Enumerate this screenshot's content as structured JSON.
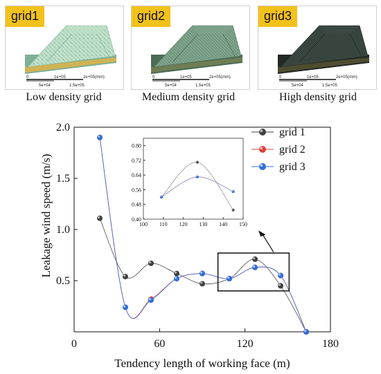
{
  "panels": [
    {
      "badge": "grid1",
      "caption": "Low density grid",
      "mesh_color": "#bfe0c8",
      "mesh_dark": "#7fb096",
      "scale": [
        "0",
        "1e+05",
        "2e+05(mm)",
        "5e+04",
        "1.5e+05"
      ]
    },
    {
      "badge": "grid2",
      "caption": "Medium density grid",
      "mesh_color": "#7fa48c",
      "mesh_dark": "#4b6b57",
      "scale": [
        "0",
        "1e+05",
        "2e+05(mm)",
        "5e+04",
        "1.5e+05"
      ]
    },
    {
      "badge": "grid3",
      "caption": "High density grid",
      "mesh_color": "#3c4a44",
      "mesh_dark": "#222a26",
      "scale": [
        "0",
        "1e+05",
        "2e+05(mm)",
        "5e+04",
        "1.5e+05"
      ]
    }
  ],
  "chart_data": {
    "type": "line",
    "xlabel": "Tendency length of working face (m)",
    "ylabel": "Leakage wind speed (m/s)",
    "xlim": [
      0,
      180
    ],
    "ylim": [
      0,
      2.0
    ],
    "xticks": [
      "0",
      "60",
      "120",
      "180"
    ],
    "yticks": [
      "0.5",
      "1.0",
      "1.5",
      "2.0"
    ],
    "ytick_values": [
      0.5,
      1.0,
      1.5,
      2.0
    ],
    "xtick_values": [
      0,
      60,
      120,
      180
    ],
    "x": [
      18,
      36,
      54,
      72,
      90,
      109,
      127,
      145,
      163
    ],
    "series": [
      {
        "name": "grid 1",
        "values": [
          1.11,
          0.54,
          0.67,
          0.57,
          0.47,
          0.52,
          0.71,
          0.45,
          0.0
        ],
        "color": "#404040"
      },
      {
        "name": "grid 2",
        "values": [
          1.9,
          0.24,
          0.32,
          0.52,
          0.57,
          0.52,
          0.63,
          0.55,
          0.0
        ],
        "color": "#e0413b"
      },
      {
        "name": "grid 3",
        "values": [
          1.9,
          0.24,
          0.31,
          0.52,
          0.57,
          0.52,
          0.63,
          0.55,
          0.0
        ],
        "color": "#2f6fdb"
      }
    ],
    "legend_placement": "top-right",
    "grid": false,
    "inset": {
      "xlim": [
        100,
        150
      ],
      "ylim": [
        0.4,
        0.84
      ],
      "xticks": [
        "100",
        "110",
        "120",
        "130",
        "140",
        "150"
      ],
      "xtick_values": [
        100,
        110,
        120,
        130,
        140,
        150
      ],
      "yticks": [
        "0.40",
        "0.48",
        "0.56",
        "0.64",
        "0.72",
        "0.80"
      ],
      "ytick_values": [
        0.4,
        0.48,
        0.56,
        0.64,
        0.72,
        0.8
      ],
      "x": [
        109,
        127,
        145
      ],
      "series": [
        {
          "name": "grid 1",
          "values": [
            0.52,
            0.71,
            0.45
          ]
        },
        {
          "name": "grid 2",
          "values": [
            0.52,
            0.63,
            0.55
          ]
        },
        {
          "name": "grid 3",
          "values": [
            0.52,
            0.63,
            0.55
          ]
        }
      ]
    }
  }
}
